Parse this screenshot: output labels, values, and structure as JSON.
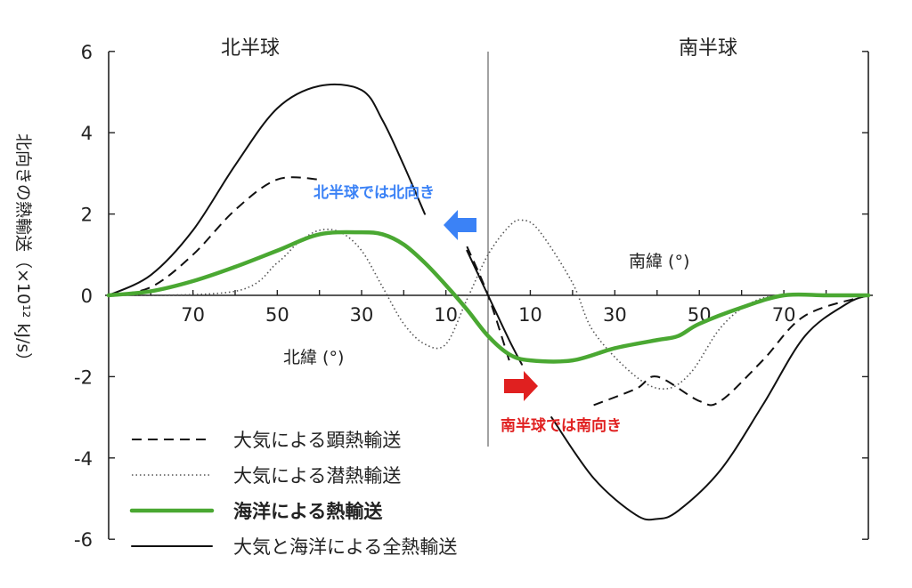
{
  "chart_data": {
    "type": "line",
    "ylabel": "北向きの熱輸送（×10¹² kJ/s）",
    "ylim": [
      -6,
      6
    ],
    "yticks": [
      "6",
      "4",
      "2",
      "0",
      "-2",
      "-4",
      "-6"
    ],
    "regions": {
      "north": "北半球",
      "south": "南半球"
    },
    "x_axis_north": {
      "label": "北緯 (°)",
      "ticks": [
        "70",
        "50",
        "30",
        "10"
      ]
    },
    "x_axis_south": {
      "label": "南緯 (°)",
      "ticks": [
        "10",
        "30",
        "50",
        "70"
      ]
    },
    "annotations": {
      "north_arrow": "北半球では北向き",
      "south_arrow": "南半球では南向き",
      "north_color": "#3b82f6",
      "south_color": "#e02020"
    },
    "series": [
      {
        "name": "大気による顕熱輸送",
        "style": "dashed",
        "color": "#111111",
        "segments": [
          [
            [
              90,
              0
            ],
            [
              80,
              0.2
            ],
            [
              70,
              1.0
            ],
            [
              60,
              2.1
            ],
            [
              50,
              2.85
            ],
            [
              40,
              2.85
            ]
          ],
          [
            [
              5,
              1.2
            ],
            [
              0,
              0
            ],
            [
              -5,
              -1.6
            ]
          ],
          [
            [
              -25,
              -2.7
            ],
            [
              -35,
              -2.3
            ],
            [
              -40,
              -2.0
            ],
            [
              -50,
              -2.6
            ],
            [
              -55,
              -2.6
            ],
            [
              -65,
              -1.6
            ],
            [
              -75,
              -0.5
            ],
            [
              -90,
              0
            ]
          ]
        ]
      },
      {
        "name": "大気による潜熱輸送",
        "style": "dotted",
        "color": "#555555",
        "segments": [
          [
            [
              90,
              0
            ],
            [
              60,
              0.1
            ],
            [
              50,
              0.8
            ],
            [
              45,
              1.3
            ],
            [
              40,
              1.6
            ],
            [
              35,
              1.55
            ],
            [
              30,
              1.1
            ],
            [
              25,
              0.2
            ],
            [
              20,
              -0.7
            ],
            [
              15,
              -1.2
            ],
            [
              10,
              -1.2
            ],
            [
              5,
              -0.1
            ],
            [
              0,
              1.0
            ],
            [
              -5,
              1.7
            ],
            [
              -8,
              1.85
            ],
            [
              -12,
              1.6
            ],
            [
              -20,
              0.3
            ],
            [
              -25,
              -0.9
            ],
            [
              -35,
              -2.0
            ],
            [
              -42,
              -2.3
            ],
            [
              -48,
              -1.9
            ],
            [
              -55,
              -0.8
            ],
            [
              -62,
              -0.2
            ],
            [
              -70,
              0
            ],
            [
              -90,
              0
            ]
          ]
        ]
      },
      {
        "name": "海洋による熱輸送",
        "style": "solid-thick",
        "color": "#4aa832",
        "segments": [
          [
            [
              90,
              0
            ],
            [
              80,
              0.1
            ],
            [
              70,
              0.35
            ],
            [
              60,
              0.7
            ],
            [
              50,
              1.1
            ],
            [
              40,
              1.5
            ],
            [
              30,
              1.55
            ],
            [
              25,
              1.5
            ],
            [
              20,
              1.25
            ],
            [
              15,
              0.8
            ],
            [
              10,
              0.25
            ],
            [
              5,
              -0.35
            ],
            [
              0,
              -1.0
            ],
            [
              -5,
              -1.45
            ],
            [
              -10,
              -1.6
            ],
            [
              -20,
              -1.6
            ],
            [
              -30,
              -1.3
            ],
            [
              -40,
              -1.1
            ],
            [
              -45,
              -1.0
            ],
            [
              -50,
              -0.7
            ],
            [
              -60,
              -0.3
            ],
            [
              -70,
              0
            ],
            [
              -80,
              0
            ],
            [
              -90,
              0
            ]
          ]
        ]
      },
      {
        "name": "大気と海洋による全熱輸送",
        "style": "solid",
        "color": "#111111",
        "segments": [
          [
            [
              90,
              0
            ],
            [
              80,
              0.5
            ],
            [
              70,
              1.6
            ],
            [
              60,
              3.2
            ],
            [
              50,
              4.6
            ],
            [
              40,
              5.15
            ],
            [
              30,
              5.05
            ],
            [
              25,
              4.3
            ],
            [
              20,
              3.2
            ],
            [
              15,
              2.0
            ]
          ],
          [
            [
              5,
              1.1
            ],
            [
              0,
              0
            ],
            [
              -5,
              -1.1
            ],
            [
              -8,
              -1.7
            ]
          ],
          [
            [
              -15,
              -3.0
            ],
            [
              -25,
              -4.5
            ],
            [
              -35,
              -5.4
            ],
            [
              -40,
              -5.5
            ],
            [
              -45,
              -5.3
            ],
            [
              -55,
              -4.3
            ],
            [
              -65,
              -2.7
            ],
            [
              -75,
              -1.0
            ],
            [
              -85,
              -0.2
            ],
            [
              -90,
              0
            ]
          ]
        ]
      }
    ]
  }
}
